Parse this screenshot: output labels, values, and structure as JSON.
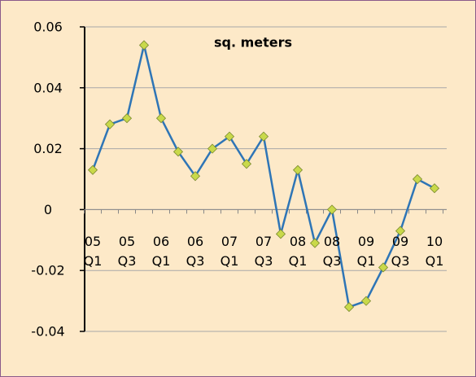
{
  "chart_data": {
    "type": "line",
    "title": "sq. meters",
    "categories": [
      "05 Q1",
      null,
      "05 Q3",
      null,
      "06 Q1",
      null,
      "06 Q3",
      null,
      "07 Q1",
      null,
      "07 Q3",
      null,
      "08 Q1",
      null,
      "08 Q3",
      null,
      "09 Q1",
      null,
      "09 Q3",
      null,
      "10 Q1"
    ],
    "series": [
      {
        "color": "#2e75b6",
        "marker_color": "#c9d94a",
        "values": [
          0.013,
          0.028,
          0.03,
          0.054,
          0.03,
          0.019,
          0.011,
          0.02,
          0.024,
          0.015,
          0.024,
          -0.008,
          0.013,
          -0.011,
          0,
          -0.032,
          -0.03,
          -0.019,
          -0.007,
          0.01,
          0.007
        ]
      }
    ],
    "ylim": [
      -0.04,
      0.06
    ],
    "yticks": [
      -0.04,
      -0.02,
      0,
      0.02,
      0.04,
      0.06
    ],
    "grid": true
  }
}
